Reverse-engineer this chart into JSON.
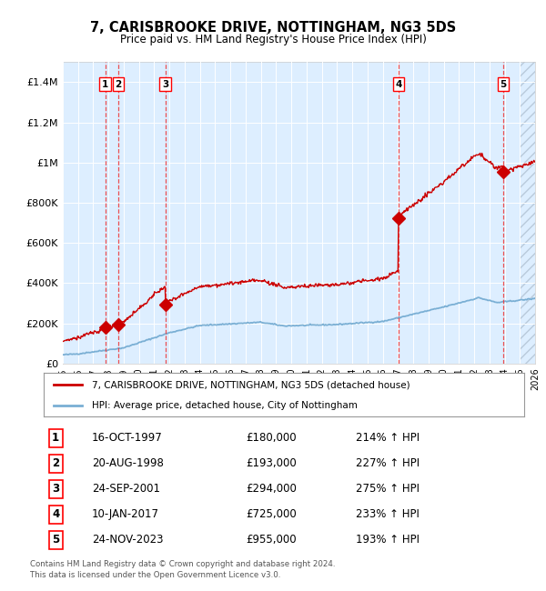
{
  "title": "7, CARISBROOKE DRIVE, NOTTINGHAM, NG3 5DS",
  "subtitle": "Price paid vs. HM Land Registry's House Price Index (HPI)",
  "legend_property": "7, CARISBROOKE DRIVE, NOTTINGHAM, NG3 5DS (detached house)",
  "legend_hpi": "HPI: Average price, detached house, City of Nottingham",
  "footer": "Contains HM Land Registry data © Crown copyright and database right 2024.\nThis data is licensed under the Open Government Licence v3.0.",
  "sales": [
    {
      "num": 1,
      "date": "16-OCT-1997",
      "price": 180000,
      "hpi": "214% ↑ HPI",
      "year": 1997.79
    },
    {
      "num": 2,
      "date": "20-AUG-1998",
      "price": 193000,
      "hpi": "227% ↑ HPI",
      "year": 1998.63
    },
    {
      "num": 3,
      "date": "24-SEP-2001",
      "price": 294000,
      "hpi": "275% ↑ HPI",
      "year": 2001.73
    },
    {
      "num": 4,
      "date": "10-JAN-2017",
      "price": 725000,
      "hpi": "233% ↑ HPI",
      "year": 2017.03
    },
    {
      "num": 5,
      "date": "24-NOV-2023",
      "price": 955000,
      "hpi": "193% ↑ HPI",
      "year": 2023.9
    }
  ],
  "property_color": "#cc0000",
  "hpi_color": "#7aafd4",
  "background_color": "#ddeeff",
  "grid_color": "#ffffff",
  "dashed_color": "#ee3333",
  "ylim": [
    0,
    1500000
  ],
  "xlim": [
    1995,
    2026
  ],
  "yticks": [
    0,
    200000,
    400000,
    600000,
    800000,
    1000000,
    1200000,
    1400000
  ],
  "xticks": [
    1995,
    1996,
    1997,
    1998,
    1999,
    2000,
    2001,
    2002,
    2003,
    2004,
    2005,
    2006,
    2007,
    2008,
    2009,
    2010,
    2011,
    2012,
    2013,
    2014,
    2015,
    2016,
    2017,
    2018,
    2019,
    2020,
    2021,
    2022,
    2023,
    2024,
    2025,
    2026
  ]
}
